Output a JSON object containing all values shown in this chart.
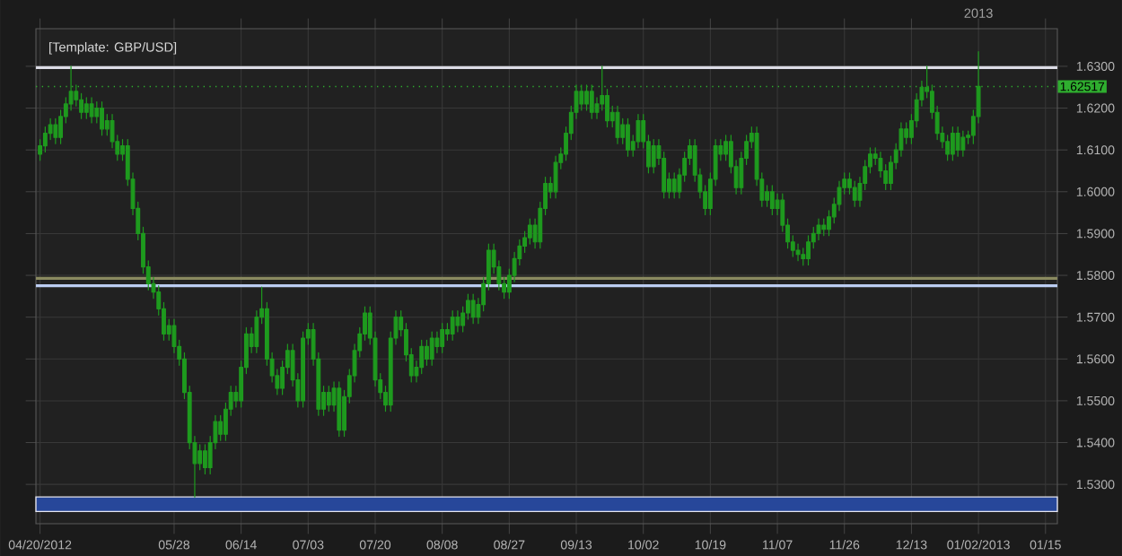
{
  "chart_data": {
    "type": "candlestick",
    "title": "[Template: GBP/USD]",
    "categories": [
      "04/20/2012",
      null,
      null,
      null,
      null,
      null,
      null,
      null,
      null,
      null,
      null,
      null,
      null,
      null,
      null,
      null,
      null,
      null,
      null,
      null,
      null,
      null,
      null,
      null,
      null,
      null,
      "05/28",
      null,
      null,
      null,
      null,
      null,
      null,
      null,
      null,
      null,
      null,
      null,
      null,
      "06/14",
      null,
      null,
      null,
      null,
      null,
      null,
      null,
      null,
      null,
      null,
      null,
      null,
      "07/03",
      null,
      null,
      null,
      null,
      null,
      null,
      null,
      null,
      null,
      null,
      null,
      null,
      "07/20",
      null,
      null,
      null,
      null,
      null,
      null,
      null,
      null,
      null,
      null,
      null,
      null,
      "08/08",
      null,
      null,
      null,
      null,
      null,
      null,
      null,
      null,
      null,
      null,
      null,
      null,
      "08/27",
      null,
      null,
      null,
      null,
      null,
      null,
      null,
      null,
      null,
      null,
      null,
      null,
      "09/13",
      null,
      null,
      null,
      null,
      null,
      null,
      null,
      null,
      null,
      null,
      null,
      null,
      "10/02",
      null,
      null,
      null,
      null,
      null,
      null,
      null,
      null,
      null,
      null,
      null,
      null,
      "10/19",
      null,
      null,
      null,
      null,
      null,
      null,
      null,
      null,
      null,
      null,
      null,
      null,
      "11/07",
      null,
      null,
      null,
      null,
      null,
      null,
      null,
      null,
      null,
      null,
      null,
      null,
      "11/26",
      null,
      null,
      null,
      null,
      null,
      null,
      null,
      null,
      null,
      null,
      null,
      null,
      "12/13",
      null,
      null,
      null,
      null,
      null,
      null,
      null,
      null,
      null,
      null,
      null,
      null,
      "01/02/2013",
      null,
      null,
      null,
      null,
      null,
      null,
      null,
      null,
      null,
      null,
      null,
      null,
      "01/15"
    ],
    "color": "#1e9a1e",
    "ohlc": [
      [
        1.609,
        1.6125,
        1.6075,
        1.611
      ],
      [
        1.611,
        1.6155,
        1.6095,
        1.614
      ],
      [
        1.614,
        1.6175,
        1.6125,
        1.616
      ],
      [
        1.616,
        1.6175,
        1.6115,
        1.613
      ],
      [
        1.613,
        1.6195,
        1.6115,
        1.618
      ],
      [
        1.618,
        1.6225,
        1.6165,
        1.621
      ],
      [
        1.621,
        1.63,
        1.6195,
        1.624
      ],
      [
        1.624,
        1.6255,
        1.6205,
        1.622
      ],
      [
        1.622,
        1.6235,
        1.6175,
        1.619
      ],
      [
        1.619,
        1.6225,
        1.6175,
        1.621
      ],
      [
        1.621,
        1.6225,
        1.6165,
        1.618
      ],
      [
        1.618,
        1.6215,
        1.6165,
        1.62
      ],
      [
        1.62,
        1.6215,
        1.6135,
        1.615
      ],
      [
        1.615,
        1.6185,
        1.6135,
        1.617
      ],
      [
        1.617,
        1.6185,
        1.6105,
        1.612
      ],
      [
        1.612,
        1.6135,
        1.6075,
        1.609
      ],
      [
        1.609,
        1.6125,
        1.6075,
        1.611
      ],
      [
        1.611,
        1.6125,
        1.6015,
        1.603
      ],
      [
        1.603,
        1.6045,
        1.5945,
        1.596
      ],
      [
        1.596,
        1.5975,
        1.5885,
        1.59
      ],
      [
        1.59,
        1.5915,
        1.5805,
        1.582
      ],
      [
        1.582,
        1.5835,
        1.5765,
        1.578
      ],
      [
        1.578,
        1.5795,
        1.5745,
        1.576
      ],
      [
        1.576,
        1.5775,
        1.5705,
        1.572
      ],
      [
        1.572,
        1.5735,
        1.5645,
        1.566
      ],
      [
        1.566,
        1.5695,
        1.5645,
        1.568
      ],
      [
        1.568,
        1.5695,
        1.5615,
        1.563
      ],
      [
        1.563,
        1.5645,
        1.5585,
        1.56
      ],
      [
        1.56,
        1.5615,
        1.5505,
        1.552
      ],
      [
        1.552,
        1.5535,
        1.5385,
        1.54
      ],
      [
        1.54,
        1.5415,
        1.527,
        1.535
      ],
      [
        1.535,
        1.5395,
        1.5335,
        1.538
      ],
      [
        1.538,
        1.5395,
        1.5325,
        1.534
      ],
      [
        1.534,
        1.5415,
        1.5325,
        1.54
      ],
      [
        1.54,
        1.5465,
        1.5385,
        1.545
      ],
      [
        1.545,
        1.5465,
        1.5405,
        1.542
      ],
      [
        1.542,
        1.5495,
        1.5405,
        1.548
      ],
      [
        1.548,
        1.5535,
        1.5465,
        1.552
      ],
      [
        1.552,
        1.5535,
        1.5485,
        1.55
      ],
      [
        1.55,
        1.5595,
        1.5485,
        1.558
      ],
      [
        1.558,
        1.5675,
        1.5565,
        1.566
      ],
      [
        1.566,
        1.5675,
        1.5615,
        1.563
      ],
      [
        1.563,
        1.5715,
        1.5615,
        1.57
      ],
      [
        1.57,
        1.5772,
        1.5685,
        1.572
      ],
      [
        1.572,
        1.5735,
        1.5585,
        1.56
      ],
      [
        1.56,
        1.5615,
        1.5545,
        1.556
      ],
      [
        1.556,
        1.5575,
        1.5515,
        1.553
      ],
      [
        1.553,
        1.5595,
        1.5515,
        1.558
      ],
      [
        1.558,
        1.5635,
        1.5565,
        1.562
      ],
      [
        1.562,
        1.5635,
        1.5535,
        1.555
      ],
      [
        1.555,
        1.5565,
        1.5485,
        1.55
      ],
      [
        1.55,
        1.5665,
        1.5485,
        1.565
      ],
      [
        1.565,
        1.5685,
        1.5635,
        1.567
      ],
      [
        1.567,
        1.5685,
        1.5585,
        1.56
      ],
      [
        1.56,
        1.5615,
        1.5465,
        1.548
      ],
      [
        1.548,
        1.5535,
        1.5465,
        1.552
      ],
      [
        1.552,
        1.5535,
        1.5475,
        1.549
      ],
      [
        1.549,
        1.5545,
        1.5475,
        1.553
      ],
      [
        1.553,
        1.5545,
        1.5415,
        1.543
      ],
      [
        1.543,
        1.5525,
        1.5415,
        1.551
      ],
      [
        1.551,
        1.5575,
        1.5495,
        1.556
      ],
      [
        1.556,
        1.5635,
        1.5545,
        1.562
      ],
      [
        1.562,
        1.5675,
        1.5605,
        1.566
      ],
      [
        1.566,
        1.5725,
        1.5645,
        1.571
      ],
      [
        1.571,
        1.5725,
        1.5635,
        1.565
      ],
      [
        1.565,
        1.5665,
        1.5535,
        1.555
      ],
      [
        1.555,
        1.5565,
        1.5505,
        1.552
      ],
      [
        1.552,
        1.5535,
        1.5475,
        1.549
      ],
      [
        1.549,
        1.5665,
        1.5475,
        1.565
      ],
      [
        1.565,
        1.5715,
        1.5635,
        1.57
      ],
      [
        1.57,
        1.5715,
        1.5655,
        1.567
      ],
      [
        1.567,
        1.5685,
        1.5595,
        1.561
      ],
      [
        1.561,
        1.5625,
        1.5545,
        1.556
      ],
      [
        1.556,
        1.5595,
        1.5545,
        1.558
      ],
      [
        1.558,
        1.5645,
        1.5565,
        1.563
      ],
      [
        1.563,
        1.5645,
        1.5585,
        1.56
      ],
      [
        1.56,
        1.5665,
        1.5585,
        1.565
      ],
      [
        1.565,
        1.5665,
        1.5615,
        1.563
      ],
      [
        1.563,
        1.5685,
        1.5615,
        1.567
      ],
      [
        1.567,
        1.5685,
        1.5645,
        1.566
      ],
      [
        1.566,
        1.5715,
        1.5645,
        1.57
      ],
      [
        1.57,
        1.5715,
        1.5665,
        1.568
      ],
      [
        1.568,
        1.5725,
        1.5665,
        1.571
      ],
      [
        1.571,
        1.5755,
        1.5695,
        1.574
      ],
      [
        1.574,
        1.5755,
        1.5685,
        1.57
      ],
      [
        1.57,
        1.5745,
        1.5685,
        1.573
      ],
      [
        1.573,
        1.5795,
        1.5715,
        1.578
      ],
      [
        1.578,
        1.5875,
        1.5765,
        1.586
      ],
      [
        1.586,
        1.5875,
        1.5805,
        1.582
      ],
      [
        1.582,
        1.5835,
        1.5765,
        1.578
      ],
      [
        1.578,
        1.5795,
        1.5745,
        1.576
      ],
      [
        1.576,
        1.5815,
        1.5745,
        1.58
      ],
      [
        1.58,
        1.5855,
        1.5785,
        1.584
      ],
      [
        1.584,
        1.5885,
        1.5825,
        1.587
      ],
      [
        1.587,
        1.5905,
        1.5855,
        1.589
      ],
      [
        1.589,
        1.5935,
        1.5875,
        1.592
      ],
      [
        1.592,
        1.5935,
        1.5865,
        1.588
      ],
      [
        1.588,
        1.5975,
        1.5865,
        1.596
      ],
      [
        1.596,
        1.6035,
        1.5945,
        1.602
      ],
      [
        1.602,
        1.6035,
        1.5985,
        1.6
      ],
      [
        1.6,
        1.6085,
        1.5985,
        1.607
      ],
      [
        1.607,
        1.6105,
        1.6055,
        1.609
      ],
      [
        1.609,
        1.6155,
        1.6075,
        1.614
      ],
      [
        1.614,
        1.6205,
        1.6125,
        1.619
      ],
      [
        1.619,
        1.6255,
        1.6175,
        1.624
      ],
      [
        1.624,
        1.6255,
        1.6195,
        1.621
      ],
      [
        1.621,
        1.6255,
        1.6195,
        1.624
      ],
      [
        1.624,
        1.6255,
        1.6175,
        1.619
      ],
      [
        1.619,
        1.6225,
        1.6175,
        1.621
      ],
      [
        1.621,
        1.63,
        1.6195,
        1.623
      ],
      [
        1.623,
        1.6245,
        1.6155,
        1.617
      ],
      [
        1.617,
        1.6205,
        1.6155,
        1.619
      ],
      [
        1.619,
        1.6205,
        1.6115,
        1.613
      ],
      [
        1.613,
        1.6175,
        1.6115,
        1.616
      ],
      [
        1.616,
        1.6175,
        1.6085,
        1.61
      ],
      [
        1.61,
        1.6135,
        1.6085,
        1.612
      ],
      [
        1.612,
        1.6185,
        1.6105,
        1.617
      ],
      [
        1.617,
        1.6185,
        1.6105,
        1.612
      ],
      [
        1.612,
        1.6135,
        1.6045,
        1.606
      ],
      [
        1.606,
        1.6125,
        1.6045,
        1.611
      ],
      [
        1.611,
        1.6125,
        1.6065,
        1.608
      ],
      [
        1.608,
        1.6095,
        1.5985,
        1.6
      ],
      [
        1.6,
        1.6045,
        1.5985,
        1.603
      ],
      [
        1.603,
        1.6045,
        1.5985,
        1.6
      ],
      [
        1.6,
        1.6055,
        1.5985,
        1.604
      ],
      [
        1.604,
        1.6095,
        1.6025,
        1.608
      ],
      [
        1.608,
        1.6125,
        1.6065,
        1.611
      ],
      [
        1.611,
        1.6125,
        1.6025,
        1.604
      ],
      [
        1.604,
        1.6055,
        1.5985,
        1.6
      ],
      [
        1.6,
        1.6015,
        1.5945,
        1.596
      ],
      [
        1.596,
        1.6045,
        1.5945,
        1.603
      ],
      [
        1.603,
        1.6125,
        1.6015,
        1.611
      ],
      [
        1.611,
        1.6125,
        1.6075,
        1.609
      ],
      [
        1.609,
        1.6135,
        1.6075,
        1.612
      ],
      [
        1.612,
        1.6135,
        1.6045,
        1.606
      ],
      [
        1.606,
        1.6075,
        1.5995,
        1.601
      ],
      [
        1.601,
        1.6095,
        1.5995,
        1.608
      ],
      [
        1.608,
        1.6135,
        1.6065,
        1.612
      ],
      [
        1.612,
        1.6155,
        1.6105,
        1.614
      ],
      [
        1.614,
        1.6155,
        1.6015,
        1.603
      ],
      [
        1.603,
        1.6045,
        1.5965,
        1.598
      ],
      [
        1.598,
        1.6015,
        1.5965,
        1.6
      ],
      [
        1.6,
        1.6015,
        1.5945,
        1.596
      ],
      [
        1.596,
        1.5995,
        1.5945,
        1.598
      ],
      [
        1.598,
        1.5995,
        1.5905,
        1.592
      ],
      [
        1.592,
        1.5935,
        1.5865,
        1.588
      ],
      [
        1.588,
        1.5895,
        1.5845,
        1.586
      ],
      [
        1.586,
        1.5875,
        1.5835,
        1.585
      ],
      [
        1.585,
        1.5865,
        1.5824,
        1.584
      ],
      [
        1.584,
        1.5895,
        1.5825,
        1.588
      ],
      [
        1.588,
        1.5915,
        1.5865,
        1.59
      ],
      [
        1.59,
        1.5935,
        1.5885,
        1.592
      ],
      [
        1.592,
        1.5935,
        1.5895,
        1.591
      ],
      [
        1.591,
        1.5955,
        1.5895,
        1.594
      ],
      [
        1.594,
        1.5985,
        1.5925,
        1.597
      ],
      [
        1.597,
        1.6025,
        1.5955,
        1.601
      ],
      [
        1.601,
        1.6045,
        1.5995,
        1.603
      ],
      [
        1.603,
        1.6045,
        1.5995,
        1.601
      ],
      [
        1.601,
        1.6025,
        1.5965,
        1.598
      ],
      [
        1.598,
        1.6035,
        1.5965,
        1.602
      ],
      [
        1.602,
        1.6075,
        1.6005,
        1.606
      ],
      [
        1.606,
        1.6105,
        1.6045,
        1.609
      ],
      [
        1.609,
        1.6105,
        1.6065,
        1.608
      ],
      [
        1.608,
        1.6095,
        1.6035,
        1.605
      ],
      [
        1.605,
        1.6065,
        1.6005,
        1.602
      ],
      [
        1.602,
        1.6085,
        1.6005,
        1.607
      ],
      [
        1.607,
        1.6115,
        1.6055,
        1.61
      ],
      [
        1.61,
        1.6165,
        1.6085,
        1.615
      ],
      [
        1.615,
        1.6165,
        1.6115,
        1.613
      ],
      [
        1.613,
        1.6185,
        1.6115,
        1.617
      ],
      [
        1.617,
        1.6235,
        1.6155,
        1.622
      ],
      [
        1.622,
        1.6265,
        1.6205,
        1.625
      ],
      [
        1.625,
        1.63,
        1.6225,
        1.624
      ],
      [
        1.624,
        1.6255,
        1.6175,
        1.619
      ],
      [
        1.619,
        1.6205,
        1.6125,
        1.614
      ],
      [
        1.614,
        1.6155,
        1.6105,
        1.612
      ],
      [
        1.612,
        1.6135,
        1.6075,
        1.609
      ],
      [
        1.609,
        1.6155,
        1.6075,
        1.614
      ],
      [
        1.614,
        1.6155,
        1.6085,
        1.61
      ],
      [
        1.61,
        1.6145,
        1.6085,
        1.613
      ],
      [
        1.613,
        1.6145,
        1.6115,
        1.6135
      ],
      [
        1.6135,
        1.6195,
        1.6115,
        1.618
      ],
      [
        1.618,
        1.6335,
        1.6165,
        1.62517
      ],
      null,
      null,
      null,
      null,
      null,
      null,
      null,
      null,
      null,
      null,
      null,
      null,
      null
    ],
    "ylim": [
      1.5206,
      1.639
    ],
    "yticks": [
      {
        "value": 1.53,
        "label": "1.5300"
      },
      {
        "value": 1.54,
        "label": "1.5400"
      },
      {
        "value": 1.55,
        "label": "1.5500"
      },
      {
        "value": 1.56,
        "label": "1.5600"
      },
      {
        "value": 1.57,
        "label": "1.5700"
      },
      {
        "value": 1.58,
        "label": "1.5800"
      },
      {
        "value": 1.59,
        "label": "1.5900"
      },
      {
        "value": 1.6,
        "label": "1.6000"
      },
      {
        "value": 1.61,
        "label": "1.6100"
      },
      {
        "value": 1.62,
        "label": "1.6200"
      },
      {
        "value": 1.63,
        "label": "1.6300"
      }
    ],
    "grid": true,
    "ref_lines": [
      {
        "axis": "y",
        "value": 1.6297,
        "color": "#dcdce6"
      },
      {
        "axis": "y",
        "value": 1.5793,
        "color": "#8a8a60"
      },
      {
        "axis": "y",
        "value": 1.5775,
        "color": "#bccdf2"
      },
      {
        "axis": "y",
        "value": 1.62517,
        "label": "1.62517",
        "color": "#2fae2f",
        "line_style": "dotted"
      }
    ],
    "bands": [
      {
        "axis": "y",
        "from": 1.5235,
        "to": 1.527,
        "color": "#27479a"
      }
    ],
    "annotations": [
      "2013"
    ]
  }
}
